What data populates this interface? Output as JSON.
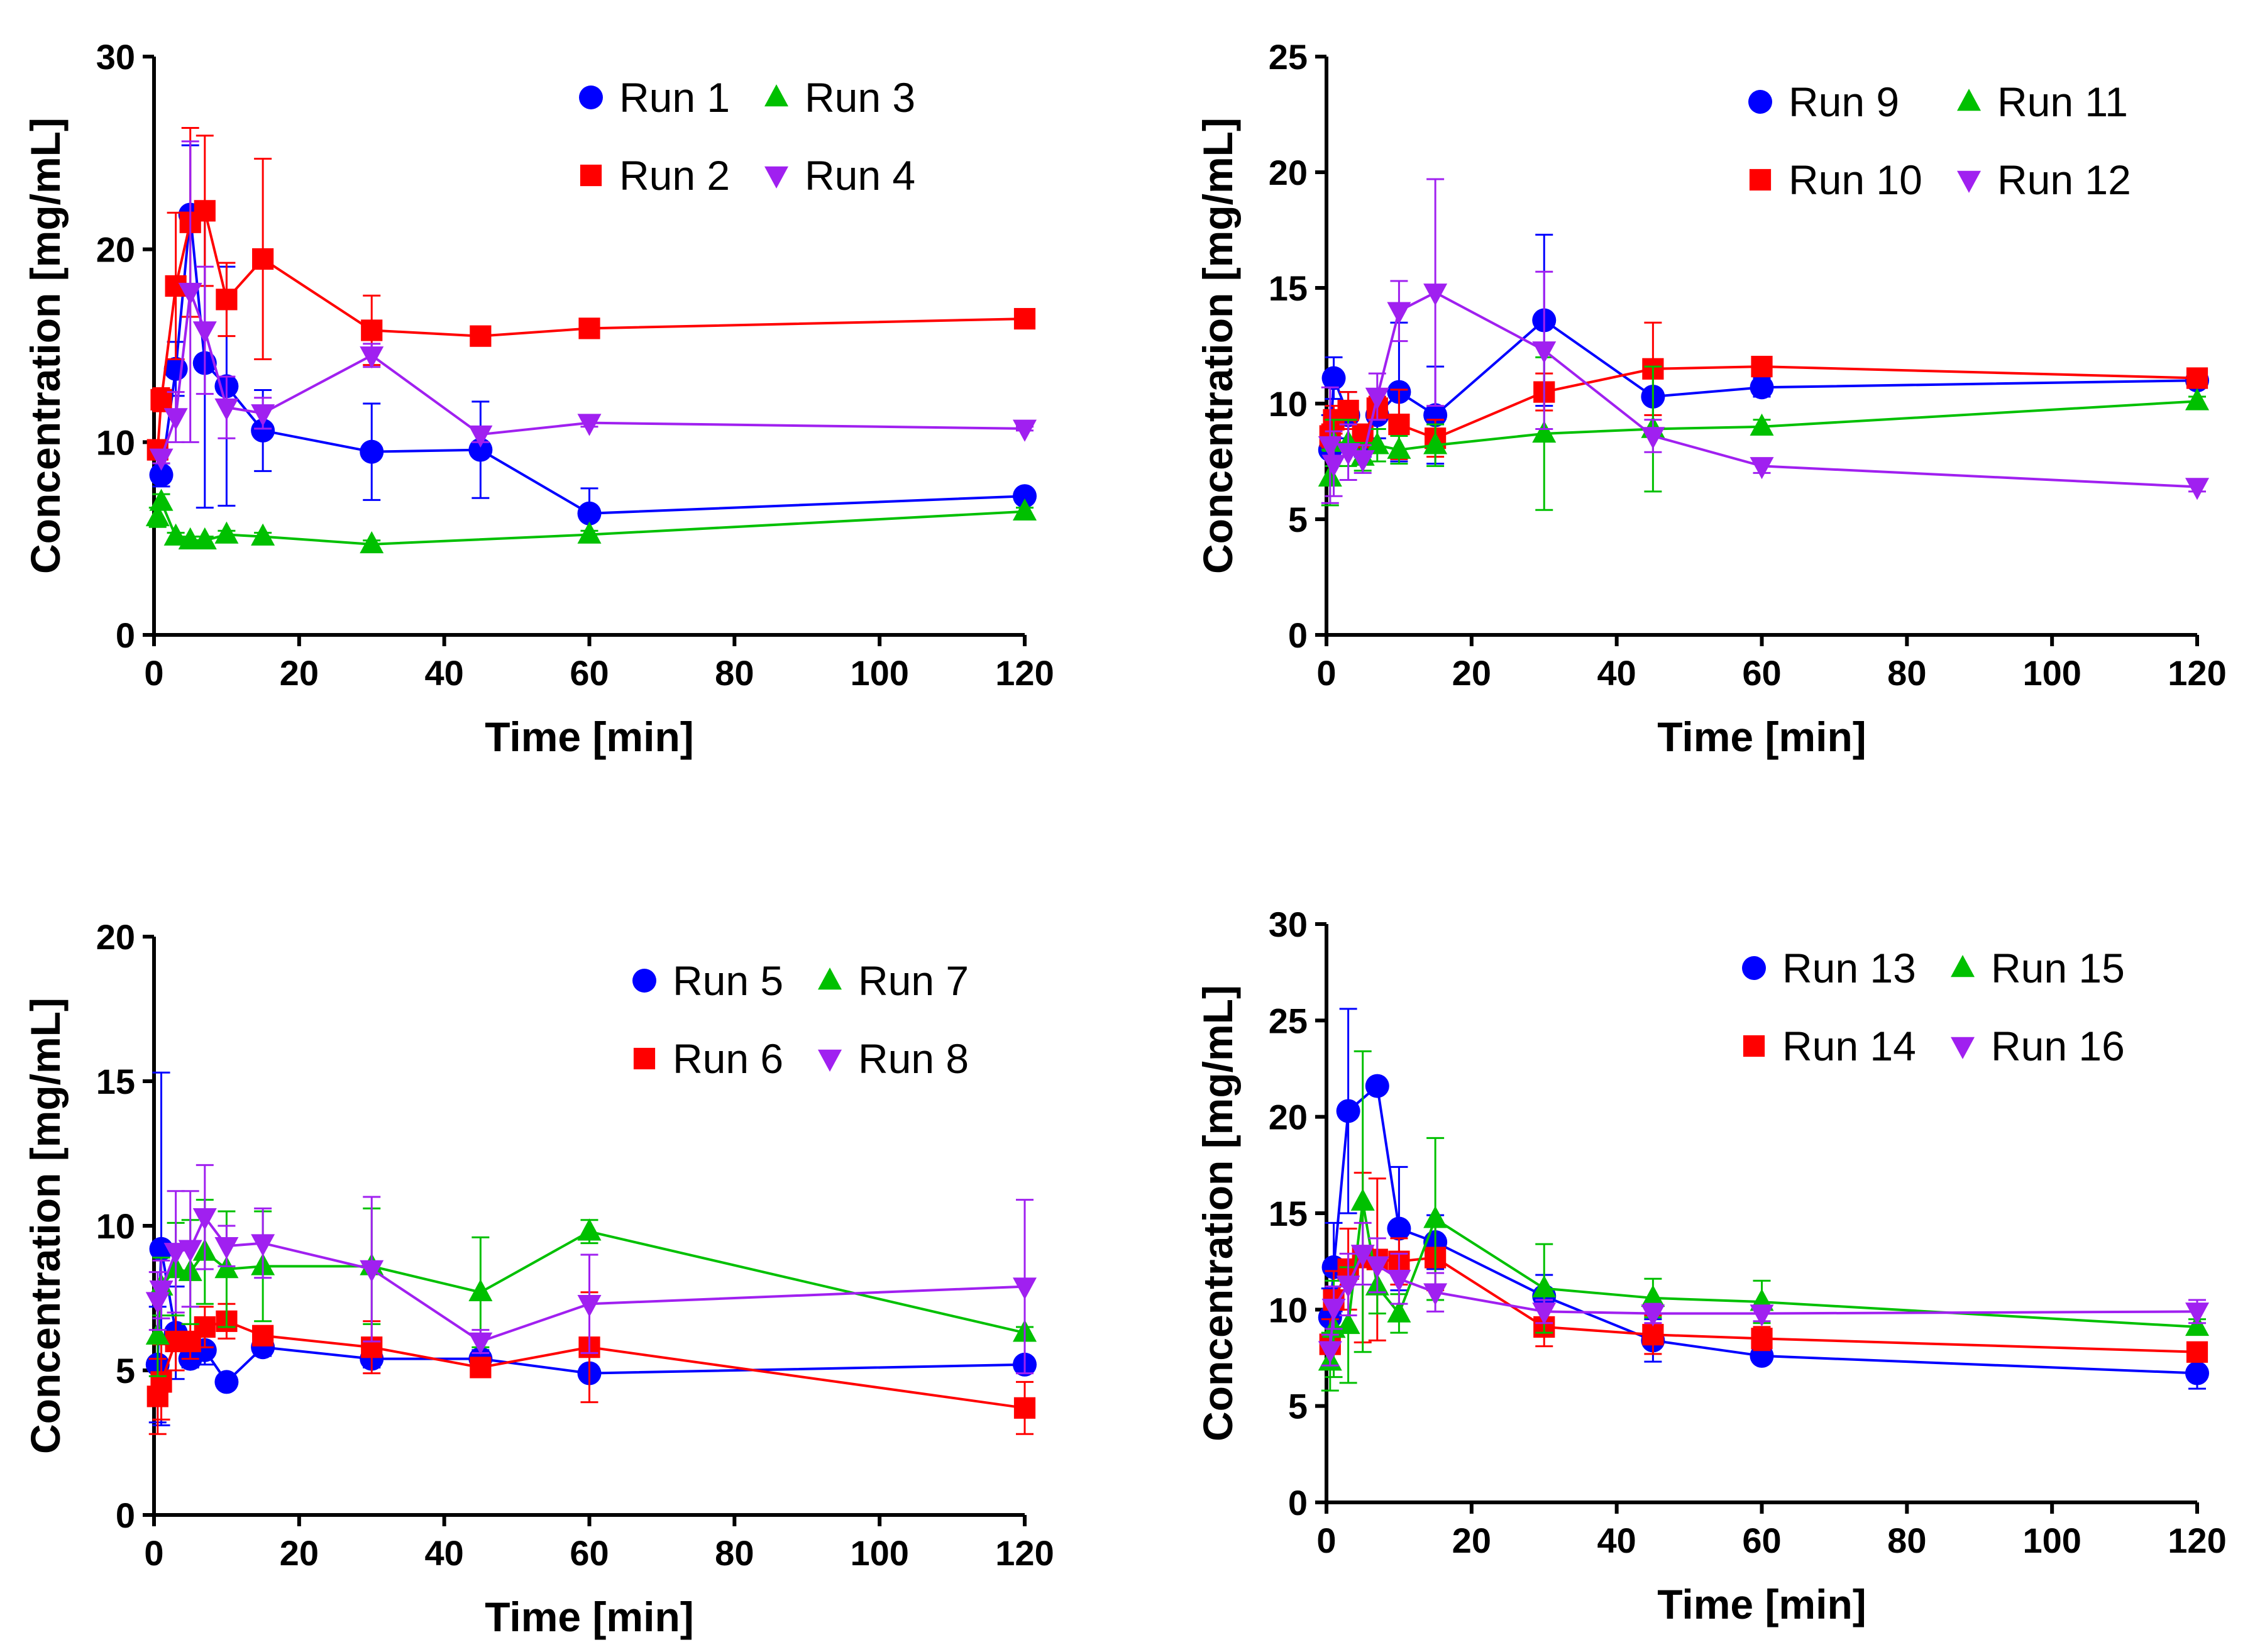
{
  "chart_data": [
    {
      "type": "line",
      "id": "panel-a",
      "xlabel": "Time [min]",
      "ylabel": "Concentration [mg/mL]",
      "xlim": [
        0,
        120
      ],
      "ylim": [
        0,
        30
      ],
      "xticks": [
        0,
        20,
        40,
        60,
        80,
        100,
        120
      ],
      "yticks": [
        0,
        10,
        20,
        30
      ],
      "legend_position": "top-right",
      "series": [
        {
          "name": "Run 1",
          "color": "#0000ff",
          "marker": "circle",
          "x": [
            1,
            3,
            5,
            7,
            10,
            15,
            30,
            45,
            60,
            120
          ],
          "y": [
            8.3,
            13.8,
            21.8,
            14.1,
            12.9,
            10.6,
            9.5,
            9.6,
            6.3,
            7.2
          ],
          "err": [
            0.6,
            1.4,
            3.6,
            7.5,
            6.2,
            2.1,
            2.5,
            2.5,
            1.3,
            0.3
          ]
        },
        {
          "name": "Run 2",
          "color": "#ff0000",
          "marker": "square",
          "x": [
            0.5,
            1,
            3,
            5,
            7,
            10,
            15,
            30,
            45,
            60,
            120
          ],
          "y": [
            9.6,
            12.2,
            18.1,
            21.4,
            22.0,
            17.4,
            19.5,
            15.8,
            15.5,
            15.9,
            16.4
          ],
          "err": [
            0.5,
            0.6,
            3.8,
            4.9,
            3.9,
            1.9,
            5.2,
            1.8,
            0.3,
            0.3,
            0.1
          ]
        },
        {
          "name": "Run 3",
          "color": "#00c000",
          "marker": "triangle-up",
          "x": [
            0.5,
            1,
            3,
            5,
            7,
            10,
            15,
            30,
            60,
            120
          ],
          "y": [
            6.1,
            6.9,
            5.1,
            4.9,
            4.9,
            5.2,
            5.1,
            4.7,
            5.2,
            6.4
          ],
          "err": [
            0.5,
            0.4,
            0.2,
            0.2,
            0.2,
            0.2,
            0.2,
            0.2,
            0.2,
            0.2
          ]
        },
        {
          "name": "Run 4",
          "color": "#a020f0",
          "marker": "triangle-down",
          "x": [
            1,
            3,
            5,
            7,
            10,
            15,
            30,
            45,
            60,
            120
          ],
          "y": [
            9.2,
            11.3,
            17.8,
            15.8,
            11.8,
            11.5,
            14.5,
            10.4,
            11.0,
            10.7
          ],
          "err": [
            0.3,
            1.3,
            7.8,
            3.3,
            1.6,
            0.8,
            0.6,
            0.4,
            0.2,
            0.1
          ]
        }
      ]
    },
    {
      "type": "line",
      "id": "panel-b",
      "xlabel": "Time [min]",
      "ylabel": "Concentration [mg/mL]",
      "xlim": [
        0,
        120
      ],
      "ylim": [
        0,
        25
      ],
      "xticks": [
        0,
        20,
        40,
        60,
        80,
        100,
        120
      ],
      "yticks": [
        0,
        5,
        10,
        15,
        20,
        25
      ],
      "legend_position": "top-right",
      "series": [
        {
          "name": "Run 9",
          "color": "#0000ff",
          "marker": "circle",
          "x": [
            0.5,
            1,
            3,
            5,
            7,
            10,
            15,
            30,
            45,
            60,
            120
          ],
          "y": [
            8.0,
            11.1,
            9.5,
            8.3,
            9.5,
            10.5,
            9.5,
            13.6,
            10.3,
            10.7,
            11.0
          ],
          "err": [
            1.5,
            0.9,
            1.0,
            0.6,
            1.0,
            3.0,
            2.1,
            3.7,
            1.6,
            0.4,
            0.2
          ]
        },
        {
          "name": "Run 10",
          "color": "#ff0000",
          "marker": "square",
          "x": [
            0.5,
            1,
            3,
            5,
            7,
            10,
            15,
            30,
            45,
            60,
            120
          ],
          "y": [
            8.6,
            9.3,
            9.7,
            8.6,
            9.8,
            9.1,
            8.5,
            10.5,
            11.5,
            11.6,
            11.1
          ],
          "err": [
            0.5,
            0.6,
            0.8,
            0.5,
            0.5,
            1.5,
            0.8,
            0.8,
            2.0,
            0.3,
            0.2
          ]
        },
        {
          "name": "Run 11",
          "color": "#00c000",
          "marker": "triangle-up",
          "x": [
            0.5,
            1,
            3,
            5,
            7,
            10,
            15,
            30,
            45,
            60,
            120
          ],
          "y": [
            6.8,
            8.3,
            8.3,
            7.7,
            8.2,
            8.0,
            8.2,
            8.7,
            8.9,
            9.0,
            10.1
          ],
          "err": [
            1.2,
            1.0,
            1.0,
            0.6,
            0.7,
            0.6,
            0.9,
            3.3,
            2.7,
            0.3,
            0.2
          ]
        },
        {
          "name": "Run 12",
          "color": "#a020f0",
          "marker": "triangle-down",
          "x": [
            0.5,
            1,
            3,
            5,
            7,
            10,
            15,
            30,
            45,
            60,
            120
          ],
          "y": [
            8.2,
            7.4,
            7.9,
            7.6,
            10.3,
            14.0,
            14.8,
            12.3,
            8.6,
            7.3,
            6.4
          ],
          "err": [
            2.5,
            1.4,
            1.2,
            0.6,
            1.0,
            1.3,
            4.9,
            3.4,
            0.7,
            0.3,
            0.2
          ]
        }
      ]
    },
    {
      "type": "line",
      "id": "panel-c",
      "xlabel": "Time [min]",
      "ylabel": "Concentration [mg/mL]",
      "xlim": [
        0,
        120
      ],
      "ylim": [
        0,
        20
      ],
      "xticks": [
        0,
        20,
        40,
        60,
        80,
        100,
        120
      ],
      "yticks": [
        0,
        5,
        10,
        15,
        20
      ],
      "legend_position": "top-right",
      "series": [
        {
          "name": "Run 5",
          "color": "#0000ff",
          "marker": "circle",
          "x": [
            0.5,
            1,
            3,
            5,
            7,
            10,
            15,
            30,
            45,
            60,
            120
          ],
          "y": [
            5.2,
            9.2,
            6.3,
            5.4,
            5.7,
            4.6,
            5.8,
            5.4,
            5.4,
            4.9,
            5.2
          ],
          "err": [
            2.0,
            6.1,
            1.6,
            0.3,
            0.5,
            0.2,
            0.3,
            0.3,
            0.3,
            0.2,
            0.2
          ]
        },
        {
          "name": "Run 6",
          "color": "#ff0000",
          "marker": "square",
          "x": [
            0.5,
            1,
            3,
            5,
            7,
            10,
            15,
            30,
            45,
            60,
            120
          ],
          "y": [
            4.1,
            4.6,
            6.0,
            6.0,
            6.5,
            6.7,
            6.2,
            5.8,
            5.1,
            5.8,
            3.7
          ],
          "err": [
            1.3,
            1.3,
            1.0,
            0.6,
            0.7,
            0.6,
            0.3,
            0.9,
            0.3,
            1.9,
            0.9
          ]
        },
        {
          "name": "Run 7",
          "color": "#00c000",
          "marker": "triangle-up",
          "x": [
            0.5,
            1,
            3,
            5,
            7,
            10,
            15,
            30,
            45,
            60,
            120
          ],
          "y": [
            6.2,
            7.9,
            8.5,
            8.4,
            9.1,
            8.5,
            8.6,
            8.6,
            7.7,
            9.8,
            6.3
          ],
          "err": [
            1.4,
            1.0,
            1.6,
            1.8,
            1.8,
            2.0,
            1.9,
            2.0,
            1.9,
            0.4,
            0.2
          ]
        },
        {
          "name": "Run 8",
          "color": "#a020f0",
          "marker": "triangle-down",
          "x": [
            0.5,
            1,
            3,
            5,
            7,
            10,
            15,
            30,
            45,
            60,
            120
          ],
          "y": [
            7.4,
            7.8,
            9.1,
            9.2,
            10.3,
            9.3,
            9.4,
            8.5,
            6.0,
            7.3,
            7.9
          ],
          "err": [
            1.0,
            1.0,
            2.1,
            2.0,
            1.8,
            0.7,
            1.2,
            2.5,
            0.4,
            1.7,
            3.0
          ]
        }
      ]
    },
    {
      "type": "line",
      "id": "panel-d",
      "xlabel": "Time [min]",
      "ylabel": "Concentration [mg/mL]",
      "xlim": [
        0,
        120
      ],
      "ylim": [
        0,
        30
      ],
      "xticks": [
        0,
        20,
        40,
        60,
        80,
        100,
        120
      ],
      "yticks": [
        0,
        5,
        10,
        15,
        20,
        25,
        30
      ],
      "legend_position": "top-right",
      "series": [
        {
          "name": "Run 13",
          "color": "#0000ff",
          "marker": "circle",
          "x": [
            0.5,
            1,
            3,
            7,
            10,
            15,
            30,
            45,
            60,
            120
          ],
          "y": [
            9.6,
            12.2,
            20.3,
            21.6,
            14.2,
            13.5,
            10.7,
            8.4,
            7.6,
            6.7
          ],
          "err": [
            1.5,
            2.3,
            5.3,
            0.3,
            3.2,
            1.4,
            1.1,
            1.1,
            0.3,
            0.8
          ]
        },
        {
          "name": "Run 14",
          "color": "#ff0000",
          "marker": "square",
          "x": [
            0.5,
            1,
            3,
            5,
            7,
            10,
            15,
            30,
            45,
            60,
            120
          ],
          "y": [
            8.2,
            10.5,
            12.1,
            12.7,
            12.6,
            12.5,
            12.7,
            9.1,
            8.7,
            8.5,
            7.8
          ],
          "err": [
            1.3,
            1.5,
            2.1,
            4.4,
            4.2,
            1.2,
            1.7,
            1.0,
            1.0,
            0.6,
            0.5
          ]
        },
        {
          "name": "Run 15",
          "color": "#00c000",
          "marker": "triangle-up",
          "x": [
            0.5,
            1,
            3,
            5,
            7,
            10,
            15,
            30,
            45,
            60,
            120
          ],
          "y": [
            7.3,
            9.0,
            9.2,
            15.6,
            11.2,
            9.8,
            14.7,
            11.1,
            10.6,
            10.4,
            9.1
          ],
          "err": [
            1.5,
            2.5,
            3.0,
            7.8,
            1.4,
            1.0,
            4.2,
            2.3,
            1.0,
            1.1,
            0.4
          ]
        },
        {
          "name": "Run 16",
          "color": "#a020f0",
          "marker": "triangle-down",
          "x": [
            0.5,
            1,
            3,
            5,
            7,
            10,
            15,
            30,
            45,
            60,
            120
          ],
          "y": [
            7.9,
            10.1,
            11.3,
            12.9,
            12.3,
            11.6,
            10.9,
            9.9,
            9.8,
            9.8,
            9.9
          ],
          "err": [
            0.8,
            1.1,
            1.6,
            1.6,
            1.4,
            1.3,
            1.0,
            0.6,
            0.5,
            0.4,
            0.6
          ]
        }
      ]
    }
  ]
}
